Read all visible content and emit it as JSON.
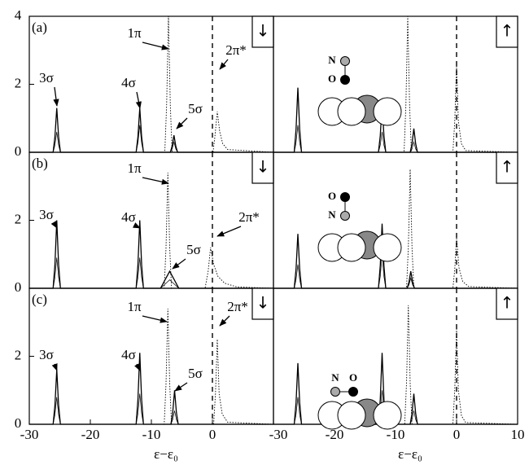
{
  "chart_data": [
    {
      "type": "line",
      "panel_label": "(a)",
      "spin": "↓",
      "annotations": [
        "3σ",
        "4σ",
        "1π",
        "5σ",
        "2π*"
      ],
      "xlim": [
        -30,
        10
      ],
      "ylim": [
        0,
        4
      ],
      "yticks": [
        0,
        2,
        4
      ],
      "vline": 0,
      "series": [
        {
          "color": "#000",
          "style": "solid",
          "x": [
            -30,
            -26.1,
            -25.8,
            -25.5,
            -25.2,
            -24.9,
            -12.5,
            -12.2,
            -11.9,
            -11.6,
            -11.3,
            -6.9,
            -6.6,
            -6.3,
            -6.0,
            -5.7,
            10
          ],
          "values": [
            0,
            0,
            0.46,
            1.3,
            0.46,
            0,
            0,
            0.46,
            1.3,
            0.46,
            0,
            0,
            0.18,
            0.5,
            0.18,
            0,
            0
          ]
        },
        {
          "color": "#000",
          "style": "thin",
          "x": [
            -30,
            -26.1,
            -25.8,
            -25.5,
            -25.2,
            -24.9,
            -12.5,
            -12.2,
            -11.9,
            -11.6,
            -11.3,
            -6.9,
            -6.6,
            -6.3,
            -6.0,
            -5.7,
            10
          ],
          "values": [
            0,
            0,
            0.21,
            0.6,
            0.21,
            0,
            0,
            0.28,
            0.8,
            0.28,
            0,
            0,
            0.1,
            0.3,
            0.1,
            0,
            0
          ]
        },
        {
          "color": "#000",
          "style": "dotted",
          "x": [
            -30,
            -7.8,
            -7.5,
            -7.2,
            -6.9,
            -6.6,
            0.1,
            0.4,
            0.8,
            1.2,
            1.7,
            2.5,
            10
          ],
          "values": [
            0,
            0,
            1.4,
            4.0,
            1.4,
            0,
            0,
            0.45,
            1.2,
            0.6,
            0.25,
            0.08,
            0
          ]
        }
      ]
    },
    {
      "type": "line",
      "spin": "↑",
      "molecule": [
        "N",
        "O"
      ],
      "xlim": [
        -30,
        10
      ],
      "ylim": [
        0,
        4
      ],
      "vline": 0,
      "series": [
        {
          "color": "#000",
          "style": "solid",
          "x": [
            -30,
            -26.6,
            -26.3,
            -26,
            -25.7,
            -25.4,
            -12.8,
            -12.5,
            -12.2,
            -11.9,
            -11.6,
            -7.6,
            -7.3,
            -7.0,
            -6.7,
            -6.4,
            10
          ],
          "values": [
            0,
            0,
            0.67,
            1.9,
            0.67,
            0,
            0,
            0.49,
            1.4,
            0.49,
            0,
            0,
            0.25,
            0.7,
            0.25,
            0,
            0
          ]
        },
        {
          "color": "#000",
          "style": "thin",
          "x": [
            -30,
            -26.6,
            -26.3,
            -26,
            -25.7,
            -25.4,
            -12.8,
            -12.5,
            -12.2,
            -11.9,
            -11.6,
            -7.6,
            -7.3,
            -7.0,
            -6.7,
            -6.4,
            10
          ],
          "values": [
            0,
            0,
            0.28,
            0.8,
            0.28,
            0,
            0,
            0.21,
            0.6,
            0.21,
            0,
            0,
            0.1,
            0.3,
            0.1,
            0,
            0
          ]
        },
        {
          "color": "#000",
          "style": "dotted",
          "x": [
            -30,
            -8.6,
            -8.3,
            -8.0,
            -7.7,
            -7.4,
            -0.6,
            -0.3,
            0,
            0.3,
            0.8,
            1.5,
            10
          ],
          "values": [
            0,
            0,
            1.4,
            4.0,
            1.4,
            0,
            0,
            0.9,
            2.6,
            0.9,
            0.25,
            0.05,
            0
          ]
        }
      ]
    },
    {
      "type": "line",
      "panel_label": "(b)",
      "spin": "↓",
      "annotations": [
        "3σ",
        "4σ",
        "1π",
        "5σ",
        "2π*"
      ],
      "xlim": [
        -30,
        10
      ],
      "ylim": [
        0,
        4
      ],
      "yticks": [
        0,
        2
      ],
      "vline": 0,
      "series": [
        {
          "color": "#000",
          "style": "solid",
          "x": [
            -30,
            -26.1,
            -25.8,
            -25.5,
            -25.2,
            -24.9,
            -12.5,
            -12.2,
            -11.9,
            -11.6,
            -11.3,
            -8.5,
            -7.6,
            -7.0,
            -6.4,
            -5.5,
            10
          ],
          "values": [
            0,
            0,
            0.7,
            2.0,
            0.7,
            0,
            0,
            0.7,
            2.0,
            0.7,
            0,
            0,
            0.3,
            0.5,
            0.3,
            0,
            0
          ]
        },
        {
          "color": "#000",
          "style": "thin",
          "x": [
            -30,
            -26.1,
            -25.8,
            -25.5,
            -25.2,
            -24.9,
            -12.5,
            -12.2,
            -11.9,
            -11.6,
            -11.3,
            -8.5,
            -7.6,
            -7.0,
            -6.4,
            -5.5,
            10
          ],
          "values": [
            0,
            0,
            0.32,
            0.9,
            0.32,
            0,
            0,
            0.32,
            0.9,
            0.32,
            0,
            0,
            0.15,
            0.25,
            0.15,
            0,
            0
          ]
        },
        {
          "color": "#000",
          "style": "dotted",
          "x": [
            -30,
            -7.9,
            -7.6,
            -7.3,
            -7.0,
            -6.7,
            -1.2,
            -0.7,
            -0.3,
            0.2,
            0.9,
            2.0,
            4.0,
            10
          ],
          "values": [
            0,
            0,
            1.2,
            3.4,
            1.2,
            0,
            0,
            0.5,
            1.2,
            0.7,
            0.35,
            0.15,
            0.04,
            0
          ]
        }
      ]
    },
    {
      "type": "line",
      "spin": "↑",
      "molecule": [
        "O",
        "N"
      ],
      "xlim": [
        -30,
        10
      ],
      "ylim": [
        0,
        4
      ],
      "vline": 0,
      "series": [
        {
          "color": "#000",
          "style": "solid",
          "x": [
            -30,
            -26.6,
            -26.3,
            -26,
            -25.7,
            -25.4,
            -12.8,
            -12.5,
            -12.2,
            -11.9,
            -11.6,
            -8.1,
            -7.8,
            -7.5,
            -7.2,
            -6.9,
            10
          ],
          "values": [
            0,
            0,
            0.56,
            1.6,
            0.56,
            0,
            0,
            0.67,
            1.9,
            0.67,
            0,
            0,
            0.18,
            0.5,
            0.18,
            0,
            0
          ]
        },
        {
          "color": "#000",
          "style": "thin",
          "x": [
            -30,
            -26.6,
            -26.3,
            -26,
            -25.7,
            -25.4,
            -12.8,
            -12.5,
            -12.2,
            -11.9,
            -11.6,
            -8.1,
            -7.8,
            -7.5,
            -7.2,
            -6.9,
            10
          ],
          "values": [
            0,
            0,
            0.25,
            0.7,
            0.25,
            0,
            0,
            0.35,
            1.0,
            0.35,
            0,
            0,
            0.1,
            0.3,
            0.1,
            0,
            0
          ]
        },
        {
          "color": "#000",
          "style": "dotted",
          "x": [
            -30,
            -8.2,
            -7.9,
            -7.6,
            -7.3,
            -7.0,
            -0.6,
            -0.3,
            0,
            0.4,
            1.0,
            2.0,
            10
          ],
          "values": [
            0,
            0,
            1.2,
            3.5,
            1.2,
            0,
            0,
            0.55,
            1.5,
            0.6,
            0.2,
            0.05,
            0
          ]
        }
      ]
    },
    {
      "type": "line",
      "panel_label": "(c)",
      "spin": "↓",
      "annotations": [
        "3σ",
        "4σ",
        "1π",
        "5σ",
        "2π*"
      ],
      "xlabel": "ε−ε₀",
      "xlim": [
        -30,
        10
      ],
      "ylim": [
        0,
        4
      ],
      "xticks": [
        -30,
        -20,
        -10,
        0
      ],
      "yticks": [
        0,
        2
      ],
      "vline": 0,
      "series": [
        {
          "color": "#000",
          "style": "solid",
          "x": [
            -30,
            -26.1,
            -25.8,
            -25.5,
            -25.2,
            -24.9,
            -12.5,
            -12.2,
            -11.9,
            -11.6,
            -11.3,
            -6.8,
            -6.5,
            -6.2,
            -5.9,
            -5.6,
            10
          ],
          "values": [
            0,
            0,
            0.56,
            1.6,
            0.56,
            0,
            0,
            0.74,
            2.1,
            0.74,
            0,
            0,
            0.35,
            1.0,
            0.35,
            0,
            0
          ]
        },
        {
          "color": "#000",
          "style": "thin",
          "x": [
            -30,
            -26.1,
            -25.8,
            -25.5,
            -25.2,
            -24.9,
            -12.5,
            -12.2,
            -11.9,
            -11.6,
            -11.3,
            -6.8,
            -6.5,
            -6.2,
            -5.9,
            -5.6,
            10
          ],
          "values": [
            0,
            0,
            0.28,
            0.8,
            0.28,
            0,
            0,
            0.32,
            0.9,
            0.32,
            0,
            0,
            0.14,
            0.4,
            0.14,
            0,
            0
          ]
        },
        {
          "color": "#000",
          "style": "dotted",
          "x": [
            -30,
            -7.9,
            -7.6,
            -7.3,
            -7.0,
            -6.7,
            0.2,
            0.5,
            0.8,
            1.1,
            1.6,
            2.5,
            10
          ],
          "values": [
            0,
            0,
            1.2,
            3.4,
            1.2,
            0,
            0,
            0.9,
            2.5,
            0.9,
            0.3,
            0.06,
            0
          ]
        }
      ]
    },
    {
      "type": "line",
      "spin": "↑",
      "molecule": [
        "N",
        "O"
      ],
      "xlabel": "ε−ε₀",
      "xlim": [
        -30,
        10
      ],
      "ylim": [
        0,
        4
      ],
      "xticks": [
        -30,
        -20,
        -10,
        0,
        10
      ],
      "vline": 0,
      "series": [
        {
          "color": "#000",
          "style": "solid",
          "x": [
            -30,
            -26.6,
            -26.3,
            -26,
            -25.7,
            -25.4,
            -12.8,
            -12.5,
            -12.2,
            -11.9,
            -11.6,
            -7.6,
            -7.3,
            -7.0,
            -6.7,
            -6.4,
            10
          ],
          "values": [
            0,
            0,
            0.63,
            1.8,
            0.63,
            0,
            0,
            0.74,
            2.1,
            0.74,
            0,
            0,
            0.32,
            0.9,
            0.32,
            0,
            0
          ]
        },
        {
          "color": "#000",
          "style": "thin",
          "x": [
            -30,
            -26.6,
            -26.3,
            -26,
            -25.7,
            -25.4,
            -12.8,
            -12.5,
            -12.2,
            -11.9,
            -11.6,
            -7.6,
            -7.3,
            -7.0,
            -6.7,
            -6.4,
            10
          ],
          "values": [
            0,
            0,
            0.28,
            0.8,
            0.28,
            0,
            0,
            0.35,
            1.0,
            0.35,
            0,
            0,
            0.14,
            0.4,
            0.14,
            0,
            0
          ]
        },
        {
          "color": "#000",
          "style": "dotted",
          "x": [
            -30,
            -8.5,
            -8.2,
            -7.9,
            -7.6,
            -7.3,
            -0.6,
            -0.3,
            0,
            0.3,
            0.8,
            1.5,
            10
          ],
          "values": [
            0,
            0,
            1.2,
            3.5,
            1.2,
            0,
            0,
            1.0,
            2.8,
            1.0,
            0.25,
            0.05,
            0
          ]
        }
      ]
    }
  ]
}
